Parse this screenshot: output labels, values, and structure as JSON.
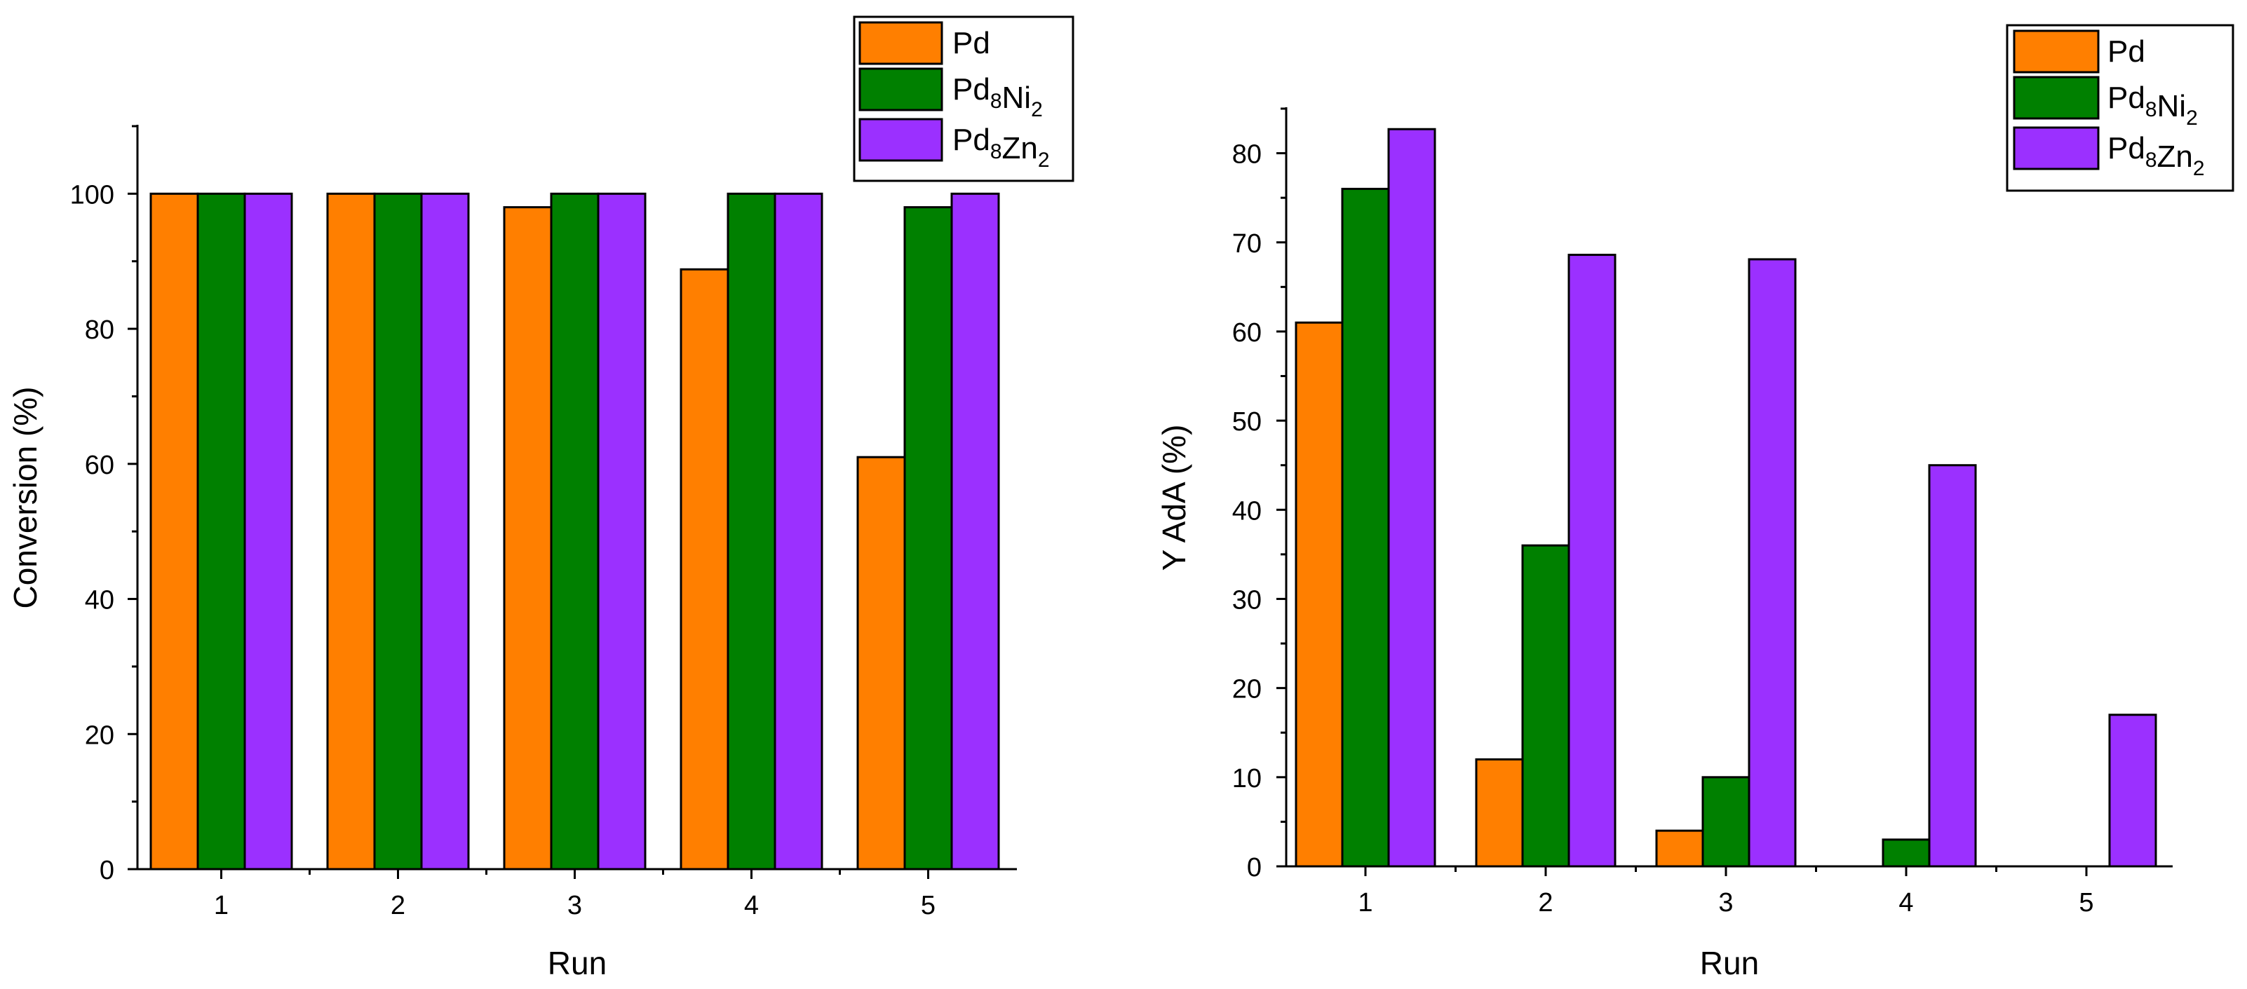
{
  "chart_data": [
    {
      "type": "bar",
      "categories": [
        "1",
        "2",
        "3",
        "4",
        "5"
      ],
      "xlabel": "Run",
      "ylabel": "Conversion (%)",
      "ylim": [
        0,
        110
      ],
      "yticks": [
        "0",
        "20",
        "40",
        "60",
        "80",
        "100"
      ],
      "legend_position": "top-right",
      "series": [
        {
          "name": "Pd",
          "base": "Pd",
          "sub1": "",
          "mid": "",
          "sub2": "",
          "color": "#ff7f00",
          "values": [
            100,
            100,
            98,
            88.8,
            61
          ]
        },
        {
          "name": "Pd8Ni2",
          "base": "Pd",
          "sub1": "8",
          "mid": "Ni",
          "sub2": "2",
          "color": "#008000",
          "values": [
            100,
            100,
            100,
            100,
            98
          ]
        },
        {
          "name": "Pd8Zn2",
          "base": "Pd",
          "sub1": "8",
          "mid": "Zn",
          "sub2": "2",
          "color": "#9b30ff",
          "values": [
            100,
            100,
            100,
            100,
            100
          ]
        }
      ]
    },
    {
      "type": "bar",
      "categories": [
        "1",
        "2",
        "3",
        "4",
        "5"
      ],
      "xlabel": "Run",
      "ylabel": "Y AdA (%)",
      "ylim": [
        0,
        85
      ],
      "yticks": [
        "0",
        "10",
        "20",
        "30",
        "40",
        "50",
        "60",
        "70",
        "80"
      ],
      "legend_position": "top-right",
      "series": [
        {
          "name": "Pd",
          "base": "Pd",
          "sub1": "",
          "mid": "",
          "sub2": "",
          "color": "#ff7f00",
          "values": [
            61,
            12,
            4,
            0,
            0
          ]
        },
        {
          "name": "Pd8Ni2",
          "base": "Pd",
          "sub1": "8",
          "mid": "Ni",
          "sub2": "2",
          "color": "#008000",
          "values": [
            76,
            36,
            10,
            3,
            0
          ]
        },
        {
          "name": "Pd8Zn2",
          "base": "Pd",
          "sub1": "8",
          "mid": "Zn",
          "sub2": "2",
          "color": "#9b30ff",
          "values": [
            82.7,
            68.6,
            68.1,
            45,
            17
          ]
        }
      ]
    }
  ]
}
